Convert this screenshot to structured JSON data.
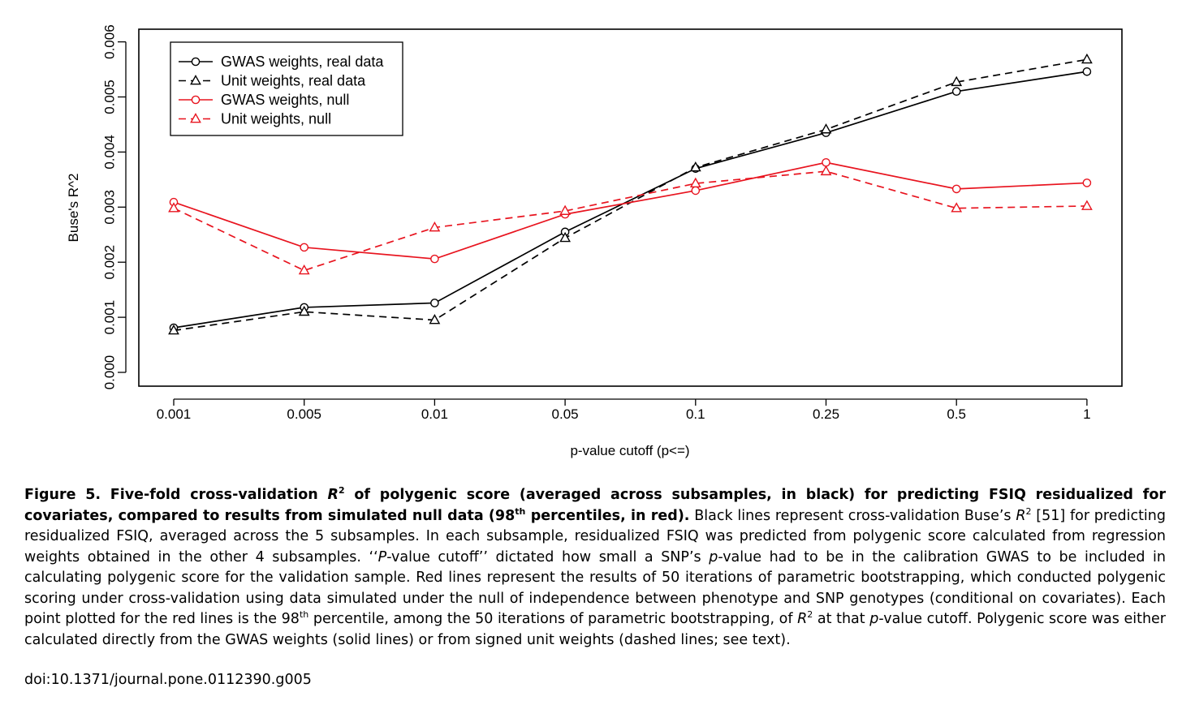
{
  "chart_data": {
    "type": "line",
    "categories": [
      "0.001",
      "0.005",
      "0.01",
      "0.05",
      "0.1",
      "0.25",
      "0.5",
      "1"
    ],
    "xlabel": "p-value cutoff (p<=)",
    "ylabel": "Buse's R^2",
    "ylim": [
      0.0,
      0.006
    ],
    "yticks": [
      "0.000",
      "0.001",
      "0.002",
      "0.003",
      "0.004",
      "0.005",
      "0.006"
    ],
    "grid": false,
    "legend_position": "top-left",
    "series": [
      {
        "name": "GWAS weights, real data",
        "color": "#000000",
        "dash": "solid",
        "marker": "circle",
        "values": [
          0.00081,
          0.00118,
          0.00126,
          0.00255,
          0.0037,
          0.00435,
          0.0051,
          0.00546
        ]
      },
      {
        "name": "Unit weights, real data",
        "color": "#000000",
        "dash": "dashed",
        "marker": "triangle",
        "values": [
          0.00076,
          0.0011,
          0.00095,
          0.00244,
          0.00372,
          0.00441,
          0.00527,
          0.00568
        ]
      },
      {
        "name": "GWAS weights, null",
        "color": "#e8141f",
        "dash": "solid",
        "marker": "circle",
        "values": [
          0.00309,
          0.00227,
          0.00206,
          0.00287,
          0.0033,
          0.00381,
          0.00333,
          0.00344
        ]
      },
      {
        "name": "Unit weights, null",
        "color": "#e8141f",
        "dash": "dashed",
        "marker": "triangle",
        "values": [
          0.00298,
          0.00185,
          0.00263,
          0.00293,
          0.00343,
          0.00365,
          0.00298,
          0.00302
        ]
      }
    ]
  },
  "caption": {
    "bold_a": "Figure 5. Five-fold cross-validation ",
    "bold_r": "R",
    "bold_sup2": "2",
    "bold_b": " of polygenic score (averaged across subsamples, in black) for predicting FSIQ residualized for covariates, compared to results from simulated null data (98",
    "bold_th": "th",
    "bold_c": " percentiles, in red).",
    "t1": " Black lines represent cross-validation Buse’s ",
    "r1": "R",
    "sup1": "2",
    "t2": " [51] for predicting residualized FSIQ, averaged across the 5 subsamples. In each subsample, residualized FSIQ was predicted from polygenic score calculated from regression weights obtained in the other 4 subsamples. ‘‘",
    "i1": "P",
    "t3": "-value cutoff’’ dictated how small a SNP’s ",
    "i2": "p",
    "t4": "-value had to be in the calibration GWAS to be included in calculating polygenic score for the validation sample. Red lines represent the results of 50 iterations of parametric bootstrapping, which conducted polygenic scoring under cross-validation using data simulated under the null of independence between phenotype and SNP genotypes (conditional on covariates). Each point plotted for the red lines is the 98",
    "th2": "th",
    "t5": " percentile, among the 50 iterations of parametric bootstrapping, of ",
    "r2": "R",
    "sup2": "2",
    "t6": " at that ",
    "i3": "p",
    "t7": "-value cutoff. Polygenic score was either calculated directly from the GWAS weights (solid lines) or from signed unit weights (dashed lines; see text).",
    "doi": "doi:10.1371/journal.pone.0112390.g005"
  }
}
